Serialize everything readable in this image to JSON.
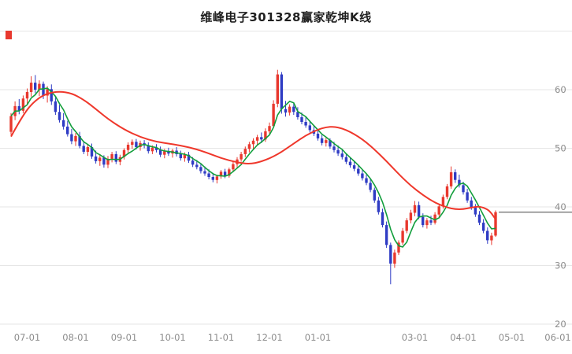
{
  "chart_data": {
    "type": "candlestick",
    "title": "维峰电子301328赢家乾坤K线",
    "y_axis": {
      "min": 20,
      "max": 70,
      "tick_values": [
        60,
        50,
        40,
        30,
        20
      ],
      "top_border_value": 70,
      "side": "right"
    },
    "x_axis": {
      "tick_labels": [
        [
          "07-01",
          4
        ],
        [
          "08-01",
          16
        ],
        [
          "09-01",
          28
        ],
        [
          "10-01",
          40
        ],
        [
          "11-01",
          52
        ],
        [
          "12-01",
          64
        ],
        [
          "01-01",
          76
        ],
        [
          "03-01",
          100
        ],
        [
          "04-01",
          112
        ],
        [
          "05-01",
          124
        ],
        [
          "06-01",
          136
        ]
      ]
    },
    "last_price": 39.1,
    "colors": {
      "up": "#e8382e",
      "down": "#2f3cc4",
      "ma_fast": "#129e3c",
      "ma_slow": "#ef372b",
      "grid": "#e6e6e6",
      "axis_text": "#8c8c8c",
      "last_price_line": "#444444",
      "corner_marker": "#e8382e",
      "background": "#ffffff"
    },
    "ma_fast_period": 5,
    "ma_slow_points": [
      [
        0,
        52.0
      ],
      [
        3,
        55.8
      ],
      [
        6,
        58.2
      ],
      [
        9,
        59.4
      ],
      [
        12,
        59.7
      ],
      [
        15,
        59.4
      ],
      [
        18,
        58.3
      ],
      [
        21,
        56.7
      ],
      [
        24,
        55.0
      ],
      [
        28,
        53.2
      ],
      [
        32,
        51.9
      ],
      [
        36,
        51.1
      ],
      [
        40,
        50.7
      ],
      [
        44,
        50.2
      ],
      [
        48,
        49.4
      ],
      [
        52,
        48.3
      ],
      [
        56,
        47.6
      ],
      [
        59,
        47.3
      ],
      [
        62,
        47.7
      ],
      [
        66,
        48.9
      ],
      [
        70,
        50.8
      ],
      [
        73,
        52.2
      ],
      [
        76,
        53.2
      ],
      [
        78,
        53.6
      ],
      [
        80,
        53.7
      ],
      [
        82,
        53.4
      ],
      [
        84,
        52.8
      ],
      [
        86,
        52.0
      ],
      [
        88,
        51.0
      ],
      [
        90,
        49.8
      ],
      [
        93,
        47.8
      ],
      [
        96,
        45.6
      ],
      [
        99,
        43.6
      ],
      [
        102,
        42.0
      ],
      [
        105,
        40.7
      ],
      [
        108,
        39.9
      ],
      [
        110,
        39.6
      ],
      [
        112,
        39.6
      ],
      [
        114,
        39.9
      ],
      [
        116,
        40.1
      ],
      [
        118,
        39.6
      ],
      [
        119,
        38.9
      ],
      [
        120,
        37.9
      ]
    ],
    "candles": [
      [
        52.8,
        56.0,
        52.3,
        55.5
      ],
      [
        55.5,
        58.0,
        54.8,
        57.2
      ],
      [
        57.2,
        58.4,
        55.8,
        56.4
      ],
      [
        56.4,
        59.0,
        56.0,
        58.5
      ],
      [
        58.5,
        60.2,
        57.6,
        59.6
      ],
      [
        59.6,
        62.3,
        58.8,
        61.2
      ],
      [
        61.2,
        62.5,
        59.4,
        60.0
      ],
      [
        60.0,
        61.6,
        58.9,
        61.0
      ],
      [
        61.0,
        61.4,
        58.4,
        59.0
      ],
      [
        59.0,
        60.6,
        57.8,
        60.1
      ],
      [
        60.1,
        60.9,
        57.4,
        58.0
      ],
      [
        58.0,
        58.7,
        55.7,
        56.2
      ],
      [
        56.2,
        57.4,
        54.4,
        54.8
      ],
      [
        54.8,
        56.0,
        53.2,
        53.7
      ],
      [
        53.7,
        54.7,
        52.0,
        52.4
      ],
      [
        52.4,
        53.3,
        50.7,
        51.2
      ],
      [
        51.2,
        52.6,
        50.4,
        52.1
      ],
      [
        52.1,
        52.8,
        50.0,
        50.4
      ],
      [
        50.4,
        51.2,
        49.0,
        49.4
      ],
      [
        49.4,
        50.7,
        48.7,
        50.2
      ],
      [
        50.2,
        50.8,
        48.2,
        48.6
      ],
      [
        48.6,
        49.6,
        47.4,
        47.8
      ],
      [
        47.8,
        49.0,
        47.0,
        48.4
      ],
      [
        48.4,
        48.8,
        46.7,
        47.2
      ],
      [
        47.2,
        48.7,
        46.6,
        48.2
      ],
      [
        48.2,
        49.4,
        47.6,
        49.0
      ],
      [
        49.0,
        49.5,
        47.3,
        47.7
      ],
      [
        47.7,
        48.9,
        47.1,
        48.5
      ],
      [
        48.5,
        50.0,
        48.1,
        49.7
      ],
      [
        49.7,
        51.0,
        49.2,
        50.6
      ],
      [
        50.6,
        51.5,
        49.9,
        51.1
      ],
      [
        51.1,
        51.6,
        49.8,
        50.2
      ],
      [
        50.2,
        51.3,
        49.6,
        50.9
      ],
      [
        50.9,
        51.4,
        50.0,
        50.5
      ],
      [
        50.5,
        51.0,
        49.1,
        49.5
      ],
      [
        49.5,
        50.5,
        49.0,
        50.1
      ],
      [
        50.1,
        50.7,
        49.3,
        49.7
      ],
      [
        49.7,
        50.3,
        48.5,
        48.9
      ],
      [
        48.9,
        49.9,
        48.3,
        49.5
      ],
      [
        49.5,
        50.1,
        48.7,
        49.1
      ],
      [
        49.1,
        49.9,
        48.4,
        49.6
      ],
      [
        49.6,
        50.2,
        48.6,
        49.0
      ],
      [
        49.0,
        49.6,
        47.9,
        48.3
      ],
      [
        48.3,
        49.3,
        47.7,
        48.9
      ],
      [
        48.9,
        49.4,
        47.5,
        47.9
      ],
      [
        47.9,
        48.5,
        46.8,
        47.2
      ],
      [
        47.2,
        48.0,
        46.4,
        46.8
      ],
      [
        46.8,
        47.4,
        45.7,
        46.1
      ],
      [
        46.1,
        46.9,
        45.3,
        45.7
      ],
      [
        45.7,
        46.4,
        44.7,
        45.1
      ],
      [
        45.1,
        45.8,
        44.2,
        44.6
      ],
      [
        44.6,
        45.5,
        44.0,
        45.2
      ],
      [
        45.2,
        46.3,
        44.8,
        46.0
      ],
      [
        46.0,
        46.5,
        44.9,
        45.3
      ],
      [
        45.3,
        46.7,
        45.0,
        46.4
      ],
      [
        46.4,
        47.7,
        45.9,
        47.3
      ],
      [
        47.3,
        48.5,
        46.7,
        48.1
      ],
      [
        48.1,
        49.4,
        47.7,
        49.0
      ],
      [
        49.0,
        50.3,
        48.5,
        49.9
      ],
      [
        49.9,
        51.1,
        49.3,
        50.7
      ],
      [
        50.7,
        51.7,
        49.9,
        51.3
      ],
      [
        51.3,
        52.3,
        50.5,
        51.9
      ],
      [
        51.9,
        52.7,
        50.9,
        51.5
      ],
      [
        51.5,
        53.4,
        51.1,
        52.9
      ],
      [
        52.9,
        54.4,
        52.5,
        53.8
      ],
      [
        53.8,
        58.2,
        53.5,
        57.6
      ],
      [
        57.6,
        63.4,
        57.0,
        62.6
      ],
      [
        62.6,
        63.0,
        55.9,
        56.7
      ],
      [
        56.7,
        58.1,
        55.4,
        56.1
      ],
      [
        56.1,
        57.5,
        55.6,
        57.1
      ],
      [
        57.1,
        57.7,
        55.7,
        56.2
      ],
      [
        56.2,
        57.0,
        54.9,
        55.3
      ],
      [
        55.3,
        56.1,
        54.1,
        54.5
      ],
      [
        54.5,
        55.3,
        53.5,
        53.9
      ],
      [
        53.9,
        54.7,
        52.7,
        53.1
      ],
      [
        53.1,
        53.9,
        52.1,
        52.5
      ],
      [
        52.5,
        53.1,
        51.3,
        51.7
      ],
      [
        51.7,
        52.3,
        50.5,
        50.9
      ],
      [
        50.9,
        51.9,
        50.3,
        51.4
      ],
      [
        51.4,
        51.7,
        49.9,
        50.3
      ],
      [
        50.3,
        51.1,
        49.3,
        49.7
      ],
      [
        49.7,
        50.5,
        48.7,
        49.1
      ],
      [
        49.1,
        49.9,
        48.1,
        48.5
      ],
      [
        48.5,
        49.1,
        47.3,
        47.7
      ],
      [
        47.7,
        48.5,
        46.7,
        47.1
      ],
      [
        47.1,
        47.9,
        46.1,
        46.5
      ],
      [
        46.5,
        47.1,
        45.3,
        45.7
      ],
      [
        45.7,
        46.3,
        44.5,
        44.9
      ],
      [
        44.9,
        45.5,
        43.7,
        44.1
      ],
      [
        44.1,
        44.7,
        42.5,
        42.9
      ],
      [
        42.9,
        43.3,
        40.7,
        41.1
      ],
      [
        41.1,
        41.7,
        38.7,
        39.1
      ],
      [
        39.1,
        39.7,
        36.5,
        36.9
      ],
      [
        36.9,
        37.5,
        33.0,
        33.5
      ],
      [
        33.5,
        33.9,
        26.8,
        30.3
      ],
      [
        30.3,
        32.7,
        29.6,
        32.2
      ],
      [
        32.2,
        34.3,
        31.8,
        33.9
      ],
      [
        33.9,
        36.4,
        33.5,
        35.9
      ],
      [
        35.9,
        38.1,
        35.5,
        37.7
      ],
      [
        37.7,
        39.5,
        37.2,
        39.0
      ],
      [
        39.0,
        41.0,
        38.4,
        40.3
      ],
      [
        40.3,
        40.9,
        37.9,
        38.3
      ],
      [
        38.3,
        38.9,
        36.5,
        36.9
      ],
      [
        36.9,
        38.1,
        36.3,
        37.7
      ],
      [
        37.7,
        38.5,
        36.9,
        37.3
      ],
      [
        37.3,
        39.1,
        37.0,
        38.7
      ],
      [
        38.7,
        40.5,
        38.3,
        40.1
      ],
      [
        40.1,
        42.1,
        39.7,
        41.7
      ],
      [
        41.7,
        43.9,
        41.3,
        43.5
      ],
      [
        43.5,
        46.9,
        43.1,
        45.9
      ],
      [
        45.9,
        46.4,
        44.1,
        44.6
      ],
      [
        44.6,
        45.5,
        43.3,
        43.7
      ],
      [
        43.7,
        44.3,
        42.1,
        42.5
      ],
      [
        42.5,
        43.1,
        40.7,
        41.1
      ],
      [
        41.1,
        41.7,
        39.5,
        39.9
      ],
      [
        39.9,
        40.5,
        38.3,
        38.7
      ],
      [
        38.7,
        39.3,
        36.9,
        37.3
      ],
      [
        37.3,
        37.9,
        35.5,
        35.9
      ],
      [
        35.9,
        36.5,
        33.7,
        34.3
      ],
      [
        34.3,
        35.6,
        33.5,
        35.1
      ],
      [
        35.1,
        39.4,
        34.9,
        39.1
      ]
    ]
  }
}
